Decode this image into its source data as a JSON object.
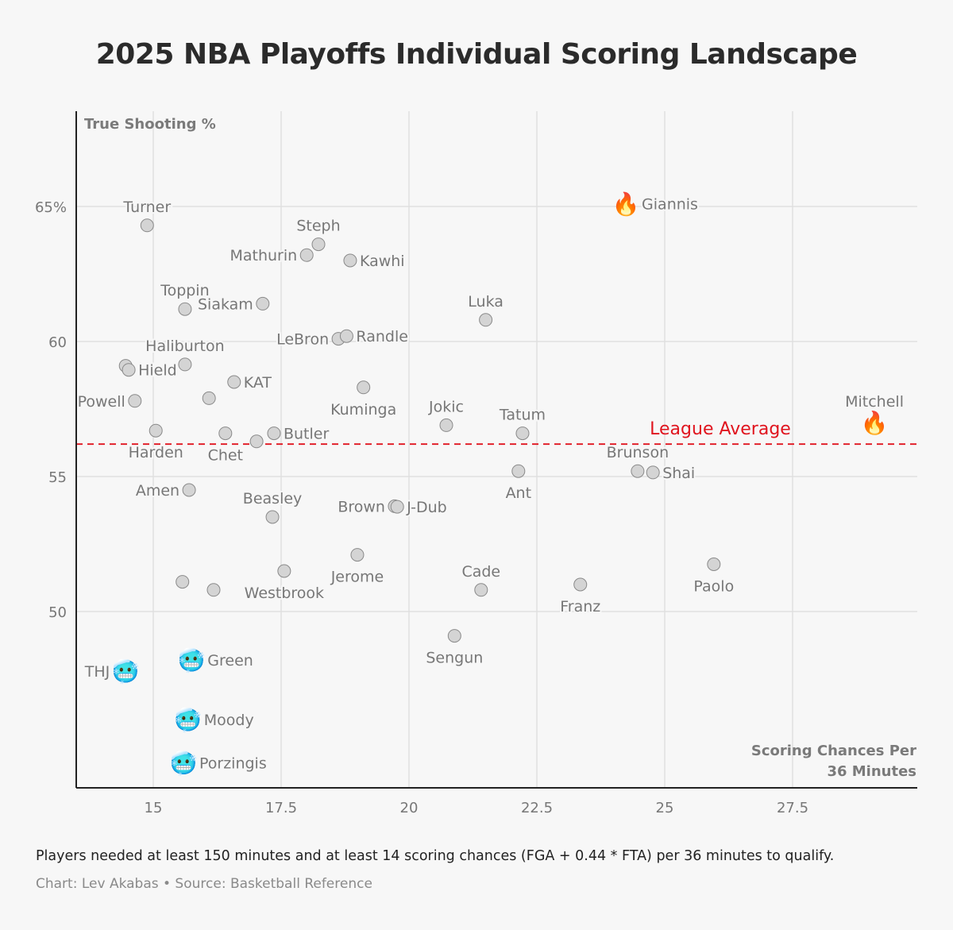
{
  "title": "2025 NBA Playoffs Individual Scoring Landscape",
  "footer": {
    "note": "Players needed at least 150 minutes and at least 14 scoring chances (FGA + 0.44 * FTA) per 36 minutes to qualify.",
    "credit": "Chart: Lev Akabas • Source: Basketball Reference"
  },
  "chart_data": {
    "type": "scatter",
    "title": "2025 NBA Playoffs Individual Scoring Landscape",
    "xlabel": "Scoring Chances Per 36 Minutes",
    "ylabel": "True Shooting %",
    "xlim": [
      13.5,
      30
    ],
    "ylim": [
      43.5,
      68.5
    ],
    "xticks": [
      15,
      17.5,
      20,
      22.5,
      25,
      27.5
    ],
    "xtick_labels": [
      "15",
      "17.5",
      "20",
      "22.5",
      "25",
      "27.5"
    ],
    "yticks": [
      50,
      55,
      60,
      65
    ],
    "ytick_labels": [
      "50",
      "55",
      "60",
      "65%"
    ],
    "grid": true,
    "reference_line": {
      "label": "League Average",
      "y": 56.2,
      "color": "#e0141e"
    },
    "colors": {
      "dot_fill": "#d4d4d4",
      "dot_stroke": "#8a8a8a",
      "grid": "#e0e0e0",
      "label": "#777777"
    },
    "markers": {
      "hot": "🔥",
      "cold": "🥶"
    },
    "points": [
      {
        "name": "Turner",
        "x": 14.88,
        "y": 64.3,
        "label": "Turner",
        "pos": "top"
      },
      {
        "name": "Steph",
        "x": 18.23,
        "y": 63.6,
        "label": "Steph",
        "pos": "top"
      },
      {
        "name": "Mathurin",
        "x": 18.0,
        "y": 63.2,
        "label": "Mathurin",
        "pos": "left"
      },
      {
        "name": "Kawhi",
        "x": 18.85,
        "y": 63.0,
        "label": "Kawhi",
        "pos": "right"
      },
      {
        "name": "Siakam",
        "x": 17.14,
        "y": 61.4,
        "label": "Siakam",
        "pos": "left"
      },
      {
        "name": "Toppin",
        "x": 15.62,
        "y": 61.2,
        "label": "Toppin",
        "pos": "top"
      },
      {
        "name": "Luka",
        "x": 21.5,
        "y": 60.8,
        "label": "Luka",
        "pos": "top"
      },
      {
        "name": "LeBron",
        "x": 18.62,
        "y": 60.1,
        "label": "LeBron",
        "pos": "left"
      },
      {
        "name": "Randle",
        "x": 18.78,
        "y": 60.2,
        "label": "Randle",
        "pos": "right"
      },
      {
        "name": "Haliburton",
        "x": 15.62,
        "y": 59.15,
        "label": "Haliburton",
        "pos": "top"
      },
      {
        "name": "Unlabeled-1",
        "x": 14.46,
        "y": 59.1,
        "label": "",
        "pos": "none"
      },
      {
        "name": "Hield",
        "x": 14.52,
        "y": 58.95,
        "label": "Hield",
        "pos": "right"
      },
      {
        "name": "KAT",
        "x": 16.58,
        "y": 58.5,
        "label": "KAT",
        "pos": "right"
      },
      {
        "name": "Kuminga",
        "x": 19.11,
        "y": 58.3,
        "label": "Kuminga",
        "pos": "bottom"
      },
      {
        "name": "Unlabeled-2",
        "x": 16.09,
        "y": 57.9,
        "label": "",
        "pos": "none"
      },
      {
        "name": "Powell",
        "x": 14.64,
        "y": 57.8,
        "label": "Powell",
        "pos": "left"
      },
      {
        "name": "Jokic",
        "x": 20.73,
        "y": 56.9,
        "label": "Jokic",
        "pos": "top"
      },
      {
        "name": "Harden",
        "x": 15.05,
        "y": 56.7,
        "label": "Harden",
        "pos": "bottom"
      },
      {
        "name": "Chet",
        "x": 16.41,
        "y": 56.6,
        "label": "Chet",
        "pos": "bottom"
      },
      {
        "name": "Butler",
        "x": 17.36,
        "y": 56.6,
        "label": "Butler",
        "pos": "right"
      },
      {
        "name": "Unlabeled-3",
        "x": 17.02,
        "y": 56.3,
        "label": "",
        "pos": "none"
      },
      {
        "name": "Tatum",
        "x": 22.22,
        "y": 56.6,
        "label": "Tatum",
        "pos": "top"
      },
      {
        "name": "Brunson",
        "x": 24.47,
        "y": 55.2,
        "label": "Brunson",
        "pos": "top"
      },
      {
        "name": "Shai",
        "x": 24.77,
        "y": 55.15,
        "label": "Shai",
        "pos": "right"
      },
      {
        "name": "Ant",
        "x": 22.14,
        "y": 55.2,
        "label": "Ant",
        "pos": "bottom"
      },
      {
        "name": "Amen",
        "x": 15.7,
        "y": 54.5,
        "label": "Amen",
        "pos": "left"
      },
      {
        "name": "Brown",
        "x": 19.72,
        "y": 53.9,
        "label": "Brown",
        "pos": "left"
      },
      {
        "name": "J-Dub",
        "x": 19.77,
        "y": 53.88,
        "label": "J-Dub",
        "pos": "right"
      },
      {
        "name": "Beasley",
        "x": 17.33,
        "y": 53.5,
        "label": "Beasley",
        "pos": "top"
      },
      {
        "name": "Jerome",
        "x": 18.99,
        "y": 52.1,
        "label": "Jerome",
        "pos": "bottom"
      },
      {
        "name": "Paolo",
        "x": 25.96,
        "y": 51.75,
        "label": "Paolo",
        "pos": "bottom"
      },
      {
        "name": "Westbrook",
        "x": 17.56,
        "y": 51.5,
        "label": "Westbrook",
        "pos": "bottom"
      },
      {
        "name": "Unlabeled-4",
        "x": 15.57,
        "y": 51.1,
        "label": "",
        "pos": "none"
      },
      {
        "name": "Unlabeled-5",
        "x": 16.18,
        "y": 50.8,
        "label": "",
        "pos": "none"
      },
      {
        "name": "Cade",
        "x": 21.41,
        "y": 50.8,
        "label": "Cade",
        "pos": "top"
      },
      {
        "name": "Franz",
        "x": 23.35,
        "y": 51.0,
        "label": "Franz",
        "pos": "bottom"
      },
      {
        "name": "Sengun",
        "x": 20.89,
        "y": 49.1,
        "label": "Sengun",
        "pos": "bottom"
      },
      {
        "name": "Giannis",
        "x": 24.24,
        "y": 65.1,
        "label": "Giannis",
        "pos": "right",
        "marker": "hot"
      },
      {
        "name": "Mitchell",
        "x": 29.1,
        "y": 57.0,
        "label": "Mitchell",
        "pos": "top",
        "marker": "hot"
      },
      {
        "name": "THJ",
        "x": 14.46,
        "y": 47.8,
        "label": "THJ",
        "pos": "left",
        "marker": "cold"
      },
      {
        "name": "Green",
        "x": 15.75,
        "y": 48.2,
        "label": "Green",
        "pos": "right",
        "marker": "cold"
      },
      {
        "name": "Moody",
        "x": 15.68,
        "y": 46.0,
        "label": "Moody",
        "pos": "right",
        "marker": "cold"
      },
      {
        "name": "Porzingis",
        "x": 15.59,
        "y": 44.4,
        "label": "Porzingis",
        "pos": "right",
        "marker": "cold"
      }
    ]
  }
}
